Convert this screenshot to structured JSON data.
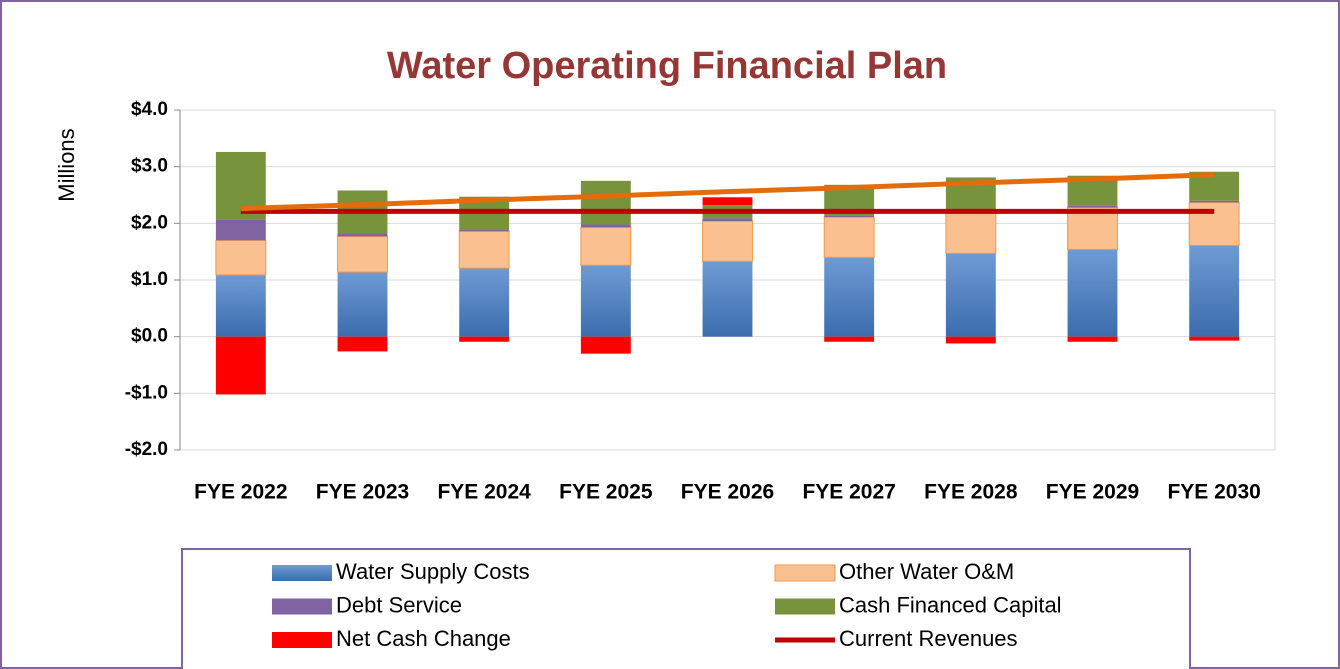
{
  "chart_data": {
    "type": "bar",
    "stacked": true,
    "title": "Water Operating Financial Plan",
    "y_label": "Millions",
    "categories": [
      "FYE 2022",
      "FYE 2023",
      "FYE 2024",
      "FYE 2025",
      "FYE 2026",
      "FYE 2027",
      "FYE 2028",
      "FYE 2029",
      "FYE 2030"
    ],
    "series": [
      {
        "name": "Water Supply Costs",
        "color": "#4f81bd",
        "values": [
          1.09,
          1.14,
          1.21,
          1.26,
          1.33,
          1.4,
          1.47,
          1.54,
          1.61
        ]
      },
      {
        "name": "Other Water O&M",
        "color": "#fac090",
        "values": [
          0.61,
          0.63,
          0.65,
          0.67,
          0.71,
          0.71,
          0.74,
          0.74,
          0.76
        ]
      },
      {
        "name": "Debt Service",
        "color": "#8064a2",
        "values": [
          0.37,
          0.05,
          0.03,
          0.05,
          0.05,
          0.03,
          0.04,
          0.04,
          0.03
        ]
      },
      {
        "name": "Cash Financed Capital",
        "color": "#77933c",
        "values": [
          1.19,
          0.76,
          0.58,
          0.77,
          0.23,
          0.54,
          0.56,
          0.52,
          0.51
        ]
      },
      {
        "name": "Net Cash Change",
        "color": "#ff0000",
        "values": [
          -1.02,
          -0.26,
          -0.09,
          -0.3,
          0.14,
          -0.09,
          -0.12,
          -0.09,
          -0.07
        ]
      },
      {
        "name": "Current Revenues",
        "color": "#c00000",
        "type": "line",
        "values": [
          2.21,
          2.21,
          2.21,
          2.21,
          2.21,
          2.21,
          2.21,
          2.21,
          2.21
        ]
      },
      {
        "color": "#e46c0a",
        "type": "line",
        "values": [
          2.26,
          2.33,
          2.41,
          2.48,
          2.56,
          2.63,
          2.71,
          2.78,
          2.86
        ]
      }
    ],
    "ylim": [
      -2,
      4
    ],
    "yticks": [
      {
        "value": -2,
        "label": "-$2.0"
      },
      {
        "value": -1,
        "label": "-$1.0"
      },
      {
        "value": 0,
        "label": "$0.0"
      },
      {
        "value": 1,
        "label": "$1.0"
      },
      {
        "value": 2,
        "label": "$2.0"
      },
      {
        "value": 3,
        "label": "$3.0"
      },
      {
        "value": 4,
        "label": "$4.0"
      }
    ],
    "grid": true,
    "legend": "bottom"
  }
}
